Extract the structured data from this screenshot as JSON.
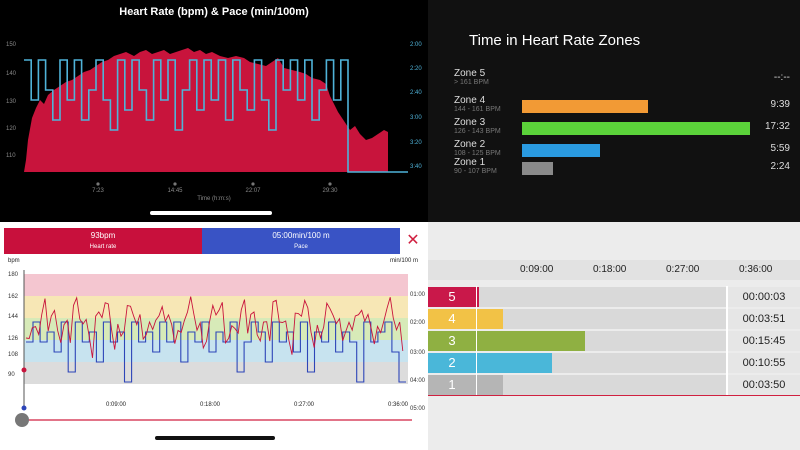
{
  "hr_pace_chart": {
    "title": "Heart Rate (bpm) & Pace (min/100m)",
    "xlabel": "Time (h:m:s)",
    "x_ticks": [
      "7:23",
      "14:45",
      "22:07",
      "29:30"
    ],
    "hr_ticks": [
      "150",
      "140",
      "130",
      "120",
      "110"
    ],
    "pace_ticks": [
      "2:00",
      "2:20",
      "2:40",
      "3:00",
      "3:20",
      "3:40"
    ],
    "hr_color": "#c8143c",
    "pace_color": "#4fb3d9"
  },
  "zones_panel": {
    "title": "Time in Heart Rate Zones",
    "zones": [
      {
        "name": "Zone 5",
        "range": "> 161 BPM",
        "time": "--:--",
        "minutes": 0,
        "color": "#e0e0e0"
      },
      {
        "name": "Zone 4",
        "range": "144 - 161 BPM",
        "time": "9:39",
        "minutes": 9.65,
        "color": "#f29a35"
      },
      {
        "name": "Zone 3",
        "range": "126 - 143 BPM",
        "time": "17:32",
        "minutes": 17.53,
        "color": "#5bd23a"
      },
      {
        "name": "Zone 2",
        "range": "108 - 125 BPM",
        "time": "5:59",
        "minutes": 5.98,
        "color": "#2a9ae0"
      },
      {
        "name": "Zone 1",
        "range": "90 - 107 BPM",
        "time": "2:24",
        "minutes": 2.4,
        "color": "#8a8a8a"
      }
    ]
  },
  "detail_view": {
    "heart_rate_value": "93bpm",
    "heart_rate_label": "Heart rate",
    "pace_value": "05:00min/100 m",
    "pace_label": "Pace",
    "close_symbol": "✕",
    "bpm_unit": "bpm",
    "pace_unit": "min/100 m",
    "hr_ticks": [
      "180",
      "162",
      "144",
      "126",
      "108",
      "90"
    ],
    "pace_ticks": [
      "01:00",
      "02:00",
      "03:00",
      "04:00",
      "05:00"
    ],
    "time_ticks": [
      "0:09:00",
      "0:18:00",
      "0:27:00",
      "0:36:00"
    ],
    "zone_band_colors": [
      "#f4c6d0",
      "#f7e7b5",
      "#d7eab8",
      "#c7e3ef",
      "#dcdcdc"
    ]
  },
  "zone_table": {
    "time_ticks": [
      "0:09:00",
      "0:18:00",
      "0:27:00",
      "0:36:00"
    ],
    "rows": [
      {
        "zone": "5",
        "time": "00:00:03",
        "seconds": 3,
        "color": "#c9184a"
      },
      {
        "zone": "4",
        "time": "00:03:51",
        "seconds": 231,
        "color": "#f2c246"
      },
      {
        "zone": "3",
        "time": "00:15:45",
        "seconds": 945,
        "color": "#8fb042"
      },
      {
        "zone": "2",
        "time": "00:10:55",
        "seconds": 655,
        "color": "#4ab7d9"
      },
      {
        "zone": "1",
        "time": "00:03:50",
        "seconds": 230,
        "color": "#b5b5b5"
      }
    ]
  }
}
